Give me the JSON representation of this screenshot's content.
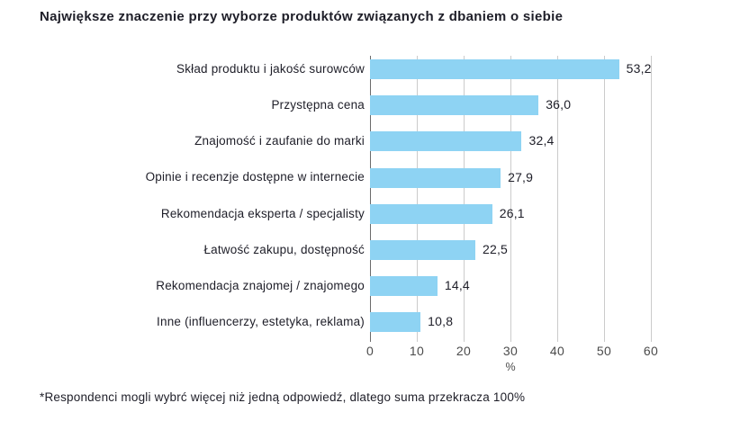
{
  "title": "Największe znaczenie przy wyborze produktów związanych z dbaniem o siebie",
  "footnote": "*Respondenci mogli wybrć więcej niż jedną odpowiedź, dlatego suma przekracza 100%",
  "colors": {
    "bar": "#8ed3f3",
    "gridline": "#cbcbcb",
    "axis_line": "#6b6b6b",
    "text": "#1e1e28",
    "tick_text": "#4b4b4b"
  },
  "chart_data": {
    "type": "bar",
    "orientation": "horizontal",
    "title": "Największe znaczenie przy wyborze produktów związanych z dbaniem o siebie",
    "categories": [
      "Skład produktu i jakość surowców",
      "Przystępna cena",
      "Znajomość i zaufanie do marki",
      "Opinie i recenzje dostępne w internecie",
      "Rekomendacja eksperta / specjalisty",
      "Łatwość zakupu, dostępność",
      "Rekomendacja znajomej / znajomego",
      "Inne (influencerzy, estetyka, reklama)"
    ],
    "values": [
      53.2,
      36.0,
      32.4,
      27.9,
      26.1,
      22.5,
      14.4,
      10.8
    ],
    "value_labels": [
      "53,2",
      "36,0",
      "32,4",
      "27,9",
      "26,1",
      "22,5",
      "14,4",
      "10,8"
    ],
    "xlabel": "%",
    "xlim": [
      0,
      60
    ],
    "xticks": [
      0,
      10,
      20,
      30,
      40,
      50,
      60
    ],
    "grid": true,
    "legend": false
  }
}
